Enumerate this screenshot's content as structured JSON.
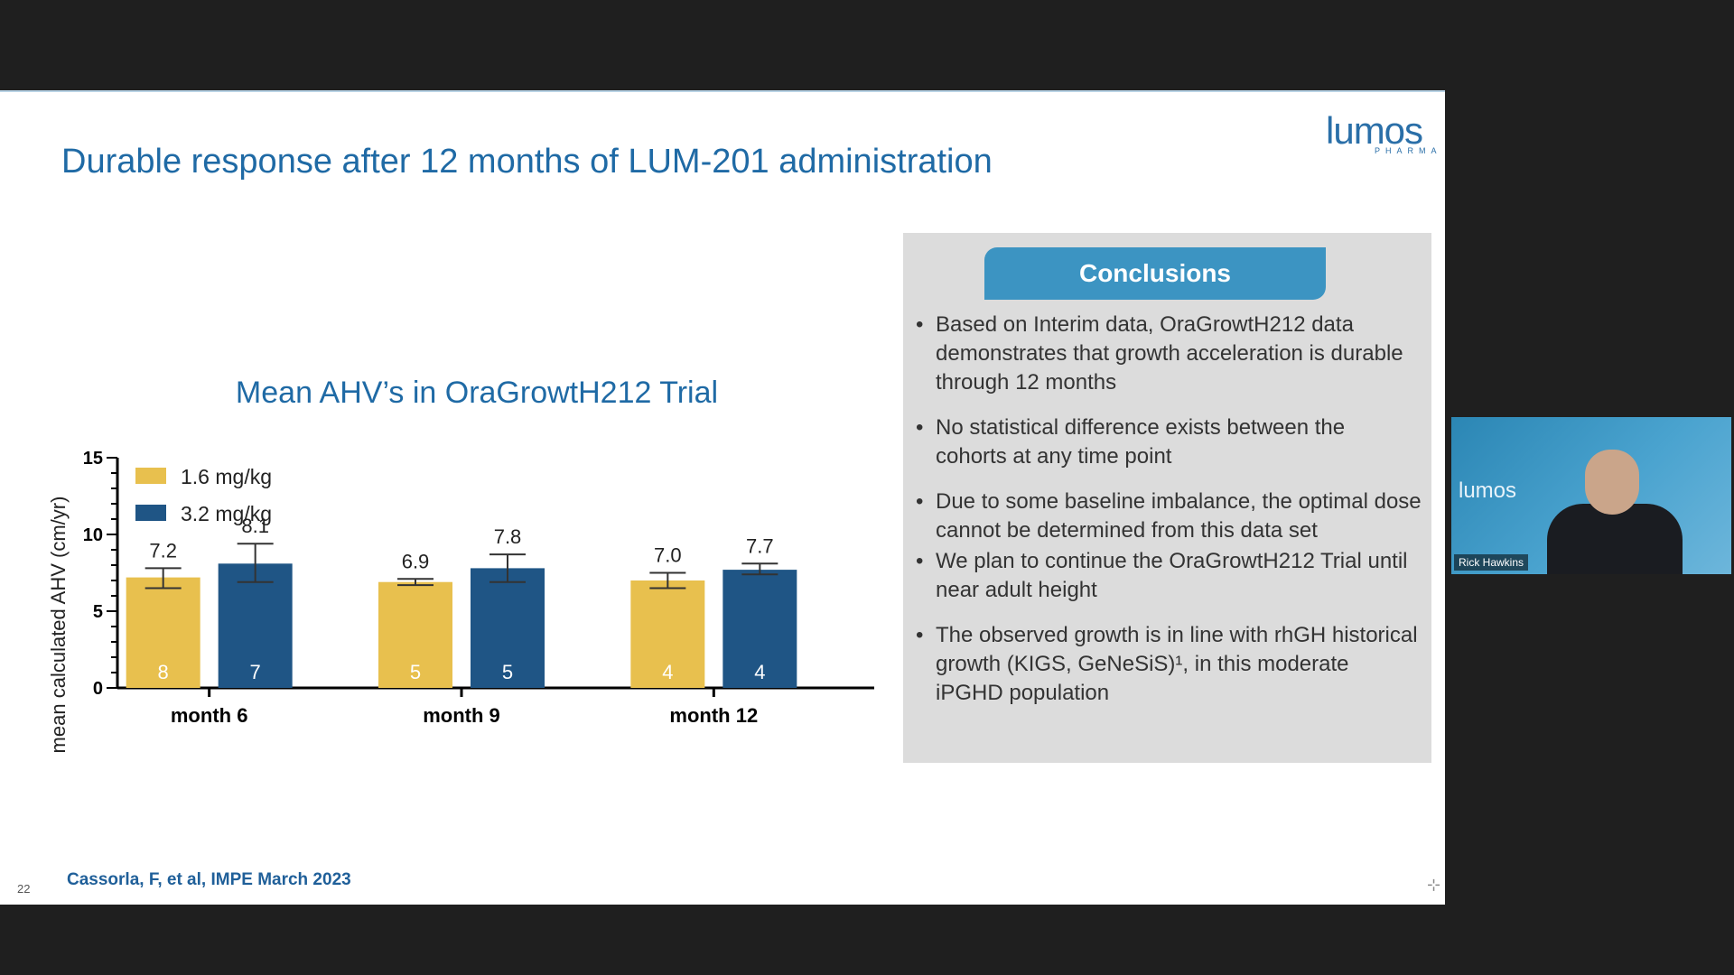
{
  "slide": {
    "title": "Durable response after 12 months of LUM-201 administration",
    "logo": {
      "word": "lumos",
      "sub": "PHARMA"
    },
    "number": "22",
    "citation": "Cassorla, F, et al, IMPE March 2023"
  },
  "chart_data": {
    "type": "bar",
    "title": "Mean AHV’s in OraGrowtH212 Trial",
    "ylabel": "mean calculated AHV (cm/yr)",
    "xlabel": "",
    "ylim": [
      0,
      15
    ],
    "yticks": [
      0,
      5,
      10,
      15
    ],
    "categories": [
      "month 6",
      "month 9",
      "month 12"
    ],
    "legend_position": "top-left",
    "series": [
      {
        "name": "1.6 mg/kg",
        "color": "#e8c04e",
        "values": [
          7.2,
          6.9,
          7.0
        ],
        "value_labels": [
          "7.2",
          "6.9",
          "7.0"
        ],
        "n": [
          "8",
          "5",
          "4"
        ],
        "error_low": [
          6.5,
          6.7,
          6.5
        ],
        "error_high": [
          7.8,
          7.1,
          7.5
        ]
      },
      {
        "name": "3.2 mg/kg",
        "color": "#1f5585",
        "values": [
          8.1,
          7.8,
          7.7
        ],
        "value_labels": [
          "8.1",
          "7.8",
          "7.7"
        ],
        "n": [
          "7",
          "5",
          "4"
        ],
        "error_low": [
          6.9,
          6.9,
          7.4
        ],
        "error_high": [
          9.4,
          8.7,
          8.1
        ]
      }
    ]
  },
  "conclusions": {
    "header": "Conclusions",
    "bullets": [
      "Based on Interim data, OraGrowtH212 data demonstrates that growth acceleration is durable through 12 months",
      "No statistical difference exists between the cohorts at any time point",
      "Due to some baseline imbalance, the optimal dose cannot be determined from this data set",
      "We plan to continue the OraGrowtH212 Trial until near adult height",
      "The observed growth is in line with rhGH historical growth (KIGS, GeNeSiS)¹, in this moderate iPGHD population"
    ]
  },
  "video": {
    "participant_name": "Rick Hawkins",
    "background_word": "lumos"
  },
  "icons": {
    "corner": "crosshair-icon"
  }
}
